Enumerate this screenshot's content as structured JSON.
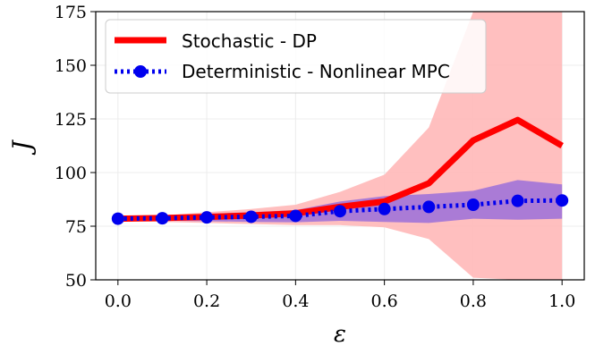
{
  "chart_data": {
    "type": "line",
    "xlabel": "ε",
    "ylabel": "J",
    "xlim": [
      -0.05,
      1.05
    ],
    "ylim": [
      50,
      175
    ],
    "x_ticks": [
      0.0,
      0.2,
      0.4,
      0.6,
      0.8,
      1.0
    ],
    "x_tick_labels": [
      "0.0",
      "0.2",
      "0.4",
      "0.6",
      "0.8",
      "1.0"
    ],
    "y_ticks": [
      50,
      75,
      100,
      125,
      150,
      175
    ],
    "y_tick_labels": [
      "50",
      "75",
      "100",
      "125",
      "150",
      "175"
    ],
    "grid": true,
    "legend_position": "top-left",
    "x": [
      0.0,
      0.1,
      0.2,
      0.3,
      0.4,
      0.5,
      0.6,
      0.7,
      0.8,
      0.9,
      1.0
    ],
    "series": [
      {
        "name": "Stochastic - DP",
        "style": "solid-thick",
        "color": "#ff0000",
        "band_color": "#ffbcbc",
        "values": [
          78.5,
          78.8,
          79.3,
          80.0,
          81.0,
          84.0,
          86.5,
          95.0,
          115.0,
          124.5,
          112.5
        ],
        "band_lower": [
          77.5,
          77.0,
          76.5,
          76.0,
          75.5,
          75.5,
          74.5,
          69.0,
          51.0,
          50.0,
          50.0
        ],
        "band_upper": [
          79.5,
          80.0,
          81.5,
          83.0,
          85.0,
          91.0,
          99.0,
          121.0,
          175.0,
          175.0,
          175.0
        ]
      },
      {
        "name": "Deterministic - Nonlinear MPC",
        "style": "dotted-with-circles",
        "color": "#0000ee",
        "band_color": "#9b6fd9",
        "values": [
          78.5,
          78.7,
          79.1,
          79.4,
          79.8,
          82.0,
          83.0,
          84.0,
          85.0,
          86.8,
          87.0
        ],
        "band_lower": [
          77.8,
          77.6,
          77.3,
          77.0,
          76.8,
          77.5,
          77.0,
          76.5,
          78.5,
          78.0,
          78.5
        ],
        "band_upper": [
          79.2,
          79.8,
          80.8,
          81.5,
          82.5,
          86.5,
          89.0,
          90.0,
          91.5,
          96.5,
          94.5
        ]
      }
    ]
  }
}
